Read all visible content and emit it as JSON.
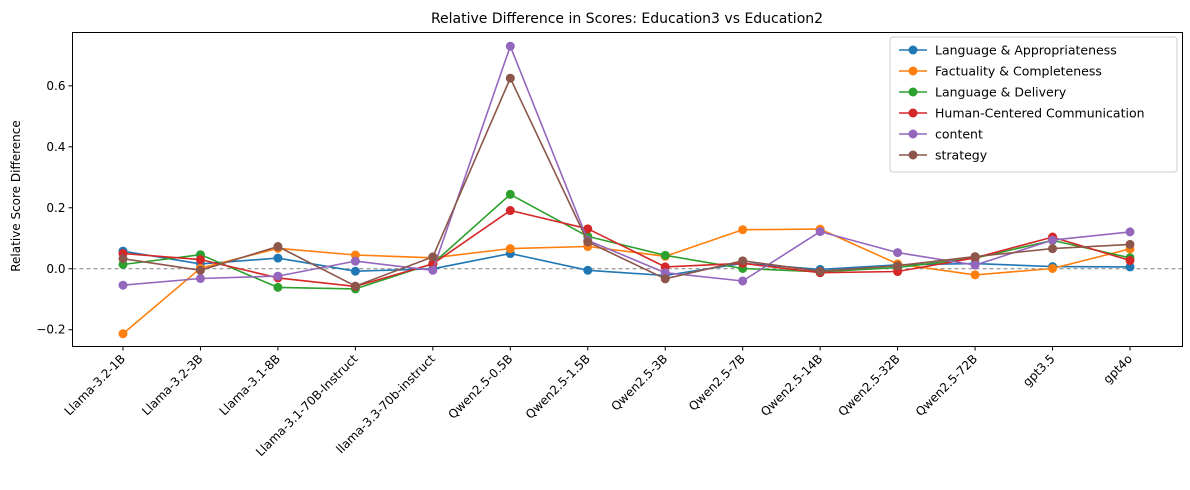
{
  "chart_data": {
    "type": "line",
    "title": "Relative Difference in Scores: Education3 vs Education2",
    "xlabel": "",
    "ylabel": "Relative Score Difference",
    "ylim": [
      -0.255,
      0.775
    ],
    "yticks": [
      -0.2,
      0.0,
      0.2,
      0.4,
      0.6
    ],
    "ytick_labels": [
      "−0.2",
      "0.0",
      "0.2",
      "0.4",
      "0.6"
    ],
    "reference_line": 0.0,
    "legend_position": "top-right",
    "categories": [
      "Llama-3.2-1B",
      "Llama-3.2-3B",
      "Llama-3.1-8B",
      "Llama-3.1-70B-Instruct",
      "llama-3.3-70b-instruct",
      "Qwen2.5-0.5B",
      "Qwen2.5-1.5B",
      "Qwen2.5-3B",
      "Qwen2.5-7B",
      "Qwen2.5-14B",
      "Qwen2.5-32B",
      "Qwen2.5-72B",
      "gpt3.5",
      "gpt4o"
    ],
    "series": [
      {
        "name": "Language & Appropriateness",
        "color": "#1f77b4",
        "values": [
          0.058,
          0.016,
          0.035,
          -0.008,
          0.0,
          0.05,
          -0.005,
          -0.022,
          0.018,
          -0.002,
          0.013,
          0.017,
          0.007,
          0.006
        ]
      },
      {
        "name": "Factuality & Completeness",
        "color": "#ff7f0e",
        "values": [
          -0.213,
          0.002,
          0.067,
          0.045,
          0.036,
          0.066,
          0.073,
          0.041,
          0.128,
          0.13,
          0.016,
          -0.02,
          0.001,
          0.065
        ]
      },
      {
        "name": "Language & Delivery",
        "color": "#2ca02c",
        "values": [
          0.014,
          0.046,
          -0.061,
          -0.066,
          0.017,
          0.244,
          0.106,
          0.044,
          0.001,
          -0.01,
          0.004,
          0.035,
          0.093,
          0.036
        ]
      },
      {
        "name": "Human-Centered Communication",
        "color": "#d62728",
        "values": [
          0.05,
          0.03,
          -0.03,
          -0.058,
          0.016,
          0.191,
          0.131,
          0.006,
          0.018,
          -0.013,
          -0.009,
          0.036,
          0.104,
          0.027
        ]
      },
      {
        "name": "content",
        "color": "#9467bd",
        "values": [
          -0.054,
          -0.032,
          -0.024,
          0.025,
          -0.005,
          0.73,
          0.093,
          -0.013,
          -0.04,
          0.122,
          0.053,
          0.012,
          0.094,
          0.121
        ]
      },
      {
        "name": "strategy",
        "color": "#8c564b",
        "values": [
          0.033,
          -0.005,
          0.073,
          -0.057,
          0.039,
          0.625,
          0.088,
          -0.033,
          0.026,
          -0.008,
          0.01,
          0.04,
          0.066,
          0.08
        ]
      }
    ]
  }
}
